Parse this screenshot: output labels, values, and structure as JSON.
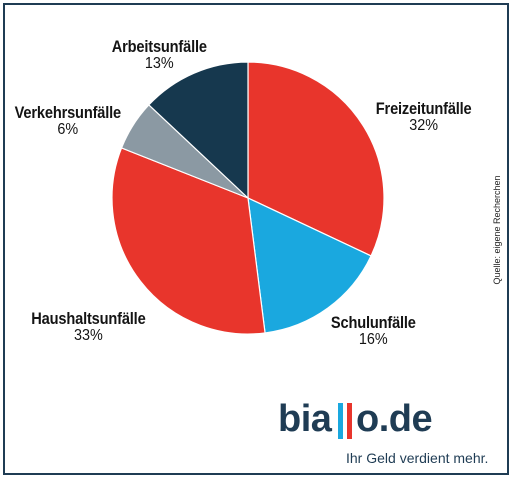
{
  "chart_data": {
    "type": "pie",
    "title": "",
    "slices": [
      {
        "label": "Freizeitunfälle",
        "value": 32,
        "display": "32%",
        "color": "#e8352c"
      },
      {
        "label": "Schulunfälle",
        "value": 16,
        "display": "16%",
        "color": "#1aa8df"
      },
      {
        "label": "Haushaltsunfälle",
        "value": 33,
        "display": "33%",
        "color": "#e8352c"
      },
      {
        "label": "Verkehrsunfälle",
        "value": 6,
        "display": "6%",
        "color": "#8b99a3"
      },
      {
        "label": "Arbeitsunfälle",
        "value": 13,
        "display": "13%",
        "color": "#16384e"
      }
    ],
    "start": "12 o'clock",
    "direction": "clockwise",
    "source": "Quelle: eigene Recherchen"
  },
  "brand": {
    "name_part1": "bia",
    "name_part2": "o.de",
    "tagline": "Ihr Geld verdient mehr.",
    "bar_colors": [
      "#1aa8df",
      "#e8352c"
    ],
    "text_color": "#1f3c54"
  }
}
